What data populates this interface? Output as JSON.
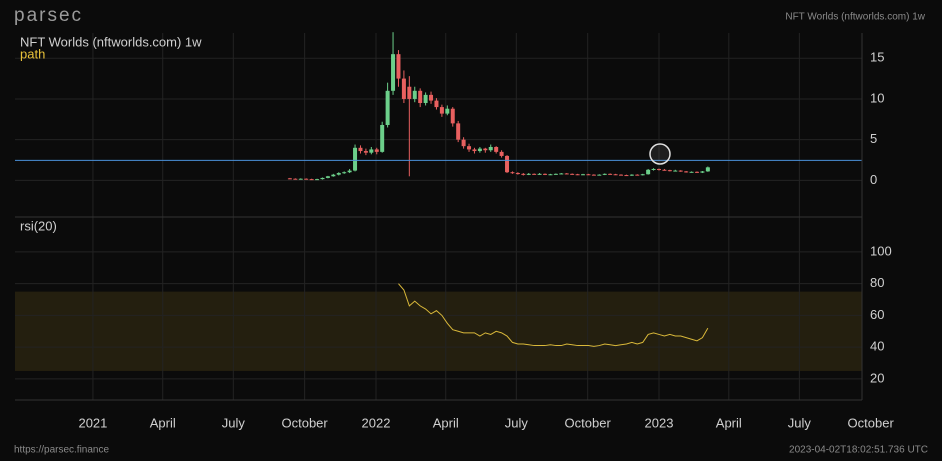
{
  "header": {
    "logo": "parsec",
    "title": "NFT Worlds (nftworlds.com) 1w"
  },
  "footer": {
    "url": "https://parsec.finance",
    "timestamp": "2023-04-02T18:02:51.736 UTC"
  },
  "chart_data": [
    {
      "type": "candlestick",
      "title": "NFT Worlds (nftworlds.com) 1w",
      "subtitle": "path",
      "up_color": "#6ccf8a",
      "down_color": "#e8605f",
      "subtitle_color": "#e8c23a",
      "reference_line": 2.45,
      "reference_color": "#4a90d9",
      "xlim": [
        -50.65,
        105.4
      ],
      "xticks": [
        {
          "value": -36.29,
          "label": "2021"
        },
        {
          "value": -23.43,
          "label": "April"
        },
        {
          "value": -10.43,
          "label": "July"
        },
        {
          "value": 2.71,
          "label": "October"
        },
        {
          "value": 15.86,
          "label": "2022"
        },
        {
          "value": 28.71,
          "label": "April"
        },
        {
          "value": 41.71,
          "label": "July"
        },
        {
          "value": 54.86,
          "label": "October"
        },
        {
          "value": 68,
          "label": "2023"
        },
        {
          "value": 80.86,
          "label": "April"
        },
        {
          "value": 93.86,
          "label": "July"
        },
        {
          "value": 107,
          "label": "October"
        }
      ],
      "ylim": [
        -4.5,
        18.1
      ],
      "yticks": [
        0,
        5,
        10,
        15
      ],
      "grid": true,
      "open": [
        0.25,
        0.2,
        0.15,
        0.2,
        0.15,
        0.1,
        0.15,
        0.3,
        0.5,
        0.7,
        0.9,
        1.0,
        1.2,
        4.0,
        3.6,
        3.4,
        3.8,
        3.5,
        6.8,
        11.0,
        15.5,
        12.5,
        11.5,
        10.0,
        11.0,
        9.5,
        10.5,
        9.8,
        9.0,
        8.2,
        8.8,
        7.0,
        5.0,
        4.2,
        3.8,
        3.6,
        3.9,
        3.7,
        4.1,
        3.5,
        3.0,
        1.0,
        0.9,
        0.8,
        0.7,
        0.8,
        0.75,
        0.8,
        0.7,
        0.75,
        0.8,
        0.85,
        0.8,
        0.75,
        0.7,
        0.75,
        0.7,
        0.65,
        0.7,
        0.8,
        0.75,
        0.7,
        0.65,
        0.6,
        0.7,
        0.65,
        0.75,
        1.3,
        1.4,
        1.3,
        1.25,
        1.2,
        1.2,
        1.1,
        1.0,
        1.05,
        0.95,
        1.1
      ],
      "high": [
        0.3,
        0.25,
        0.25,
        0.25,
        0.2,
        0.2,
        0.35,
        0.55,
        0.8,
        1.0,
        1.1,
        1.4,
        4.4,
        4.3,
        3.9,
        4.1,
        4.0,
        7.2,
        12.0,
        18.2,
        16.0,
        13.5,
        12.8,
        11.5,
        11.3,
        10.8,
        10.9,
        10.1,
        9.3,
        9.2,
        9.0,
        7.3,
        5.3,
        4.5,
        4.0,
        4.1,
        4.0,
        4.4,
        4.2,
        3.7,
        3.1,
        1.1,
        1.0,
        0.9,
        0.9,
        0.85,
        0.9,
        0.85,
        0.8,
        0.85,
        0.9,
        0.9,
        0.85,
        0.8,
        0.8,
        0.8,
        0.75,
        0.75,
        0.85,
        0.85,
        0.8,
        0.75,
        0.7,
        0.75,
        0.75,
        0.8,
        1.4,
        1.5,
        1.45,
        1.4,
        1.3,
        1.3,
        1.25,
        1.15,
        1.1,
        1.1,
        1.15,
        1.7
      ],
      "low": [
        0.15,
        0.1,
        0.1,
        0.1,
        0.05,
        0.05,
        0.1,
        0.25,
        0.45,
        0.6,
        0.8,
        0.9,
        1.1,
        3.3,
        3.1,
        3.2,
        3.2,
        3.4,
        6.5,
        10.5,
        11.5,
        9.5,
        0.5,
        9.6,
        9.0,
        9.2,
        9.4,
        8.7,
        7.8,
        8.0,
        6.6,
        4.7,
        3.9,
        3.5,
        3.3,
        3.4,
        3.4,
        3.5,
        3.3,
        2.8,
        0.9,
        0.8,
        0.7,
        0.6,
        0.65,
        0.7,
        0.7,
        0.65,
        0.65,
        0.7,
        0.75,
        0.75,
        0.7,
        0.65,
        0.65,
        0.65,
        0.6,
        0.6,
        0.65,
        0.7,
        0.65,
        0.6,
        0.55,
        0.55,
        0.6,
        0.6,
        0.7,
        1.2,
        1.2,
        1.2,
        1.1,
        1.1,
        1.05,
        0.95,
        0.95,
        0.9,
        0.9,
        1.05
      ],
      "close": [
        0.2,
        0.15,
        0.2,
        0.15,
        0.1,
        0.15,
        0.3,
        0.5,
        0.7,
        0.9,
        1.0,
        1.2,
        4.0,
        3.6,
        3.4,
        3.8,
        3.5,
        6.8,
        11.0,
        15.5,
        12.5,
        10.0,
        10.0,
        11.0,
        9.5,
        10.5,
        9.8,
        9.0,
        8.2,
        8.8,
        7.0,
        5.0,
        4.2,
        3.8,
        3.6,
        3.9,
        3.7,
        4.1,
        3.5,
        3.0,
        1.0,
        0.9,
        0.8,
        0.7,
        0.8,
        0.75,
        0.8,
        0.7,
        0.75,
        0.8,
        0.85,
        0.8,
        0.75,
        0.7,
        0.75,
        0.7,
        0.65,
        0.7,
        0.8,
        0.75,
        0.7,
        0.65,
        0.6,
        0.7,
        0.65,
        0.75,
        1.3,
        1.4,
        1.3,
        1.25,
        1.2,
        1.2,
        1.1,
        1.0,
        1.05,
        0.95,
        1.1,
        1.6
      ]
    },
    {
      "type": "line",
      "title": "rsi(20)",
      "color": "#d9b83a",
      "band": [
        25,
        75
      ],
      "band_color": "#2a2410",
      "xlim": [
        -50.65,
        105.4
      ],
      "xticks": [
        {
          "value": -36.29,
          "label": "2021"
        },
        {
          "value": -23.43,
          "label": "April"
        },
        {
          "value": -10.43,
          "label": "July"
        },
        {
          "value": 2.71,
          "label": "October"
        },
        {
          "value": 15.86,
          "label": "2022"
        },
        {
          "value": 28.71,
          "label": "April"
        },
        {
          "value": 41.71,
          "label": "July"
        },
        {
          "value": 54.86,
          "label": "October"
        },
        {
          "value": 68,
          "label": "2023"
        },
        {
          "value": 80.86,
          "label": "April"
        },
        {
          "value": 93.86,
          "label": "July"
        },
        {
          "value": 107,
          "label": "October"
        }
      ],
      "ylim": [
        6.7,
        122
      ],
      "yticks": [
        20,
        40,
        60,
        80,
        100
      ],
      "grid": true,
      "values": [
        null,
        null,
        null,
        null,
        null,
        null,
        null,
        null,
        null,
        null,
        null,
        null,
        null,
        null,
        null,
        null,
        null,
        null,
        null,
        null,
        80,
        76,
        66,
        69,
        66,
        64,
        61,
        63,
        60,
        55,
        51,
        50,
        49,
        49,
        49,
        47,
        49,
        48,
        50,
        49,
        47,
        43,
        42,
        42,
        41.5,
        41,
        41,
        41,
        41.5,
        41,
        41,
        42,
        41.5,
        41,
        41,
        41,
        40.5,
        41,
        42,
        41.5,
        41,
        41.5,
        42,
        43,
        42,
        43,
        48,
        49,
        48,
        47,
        48,
        47,
        47,
        46,
        45,
        44,
        46,
        52
      ]
    }
  ]
}
